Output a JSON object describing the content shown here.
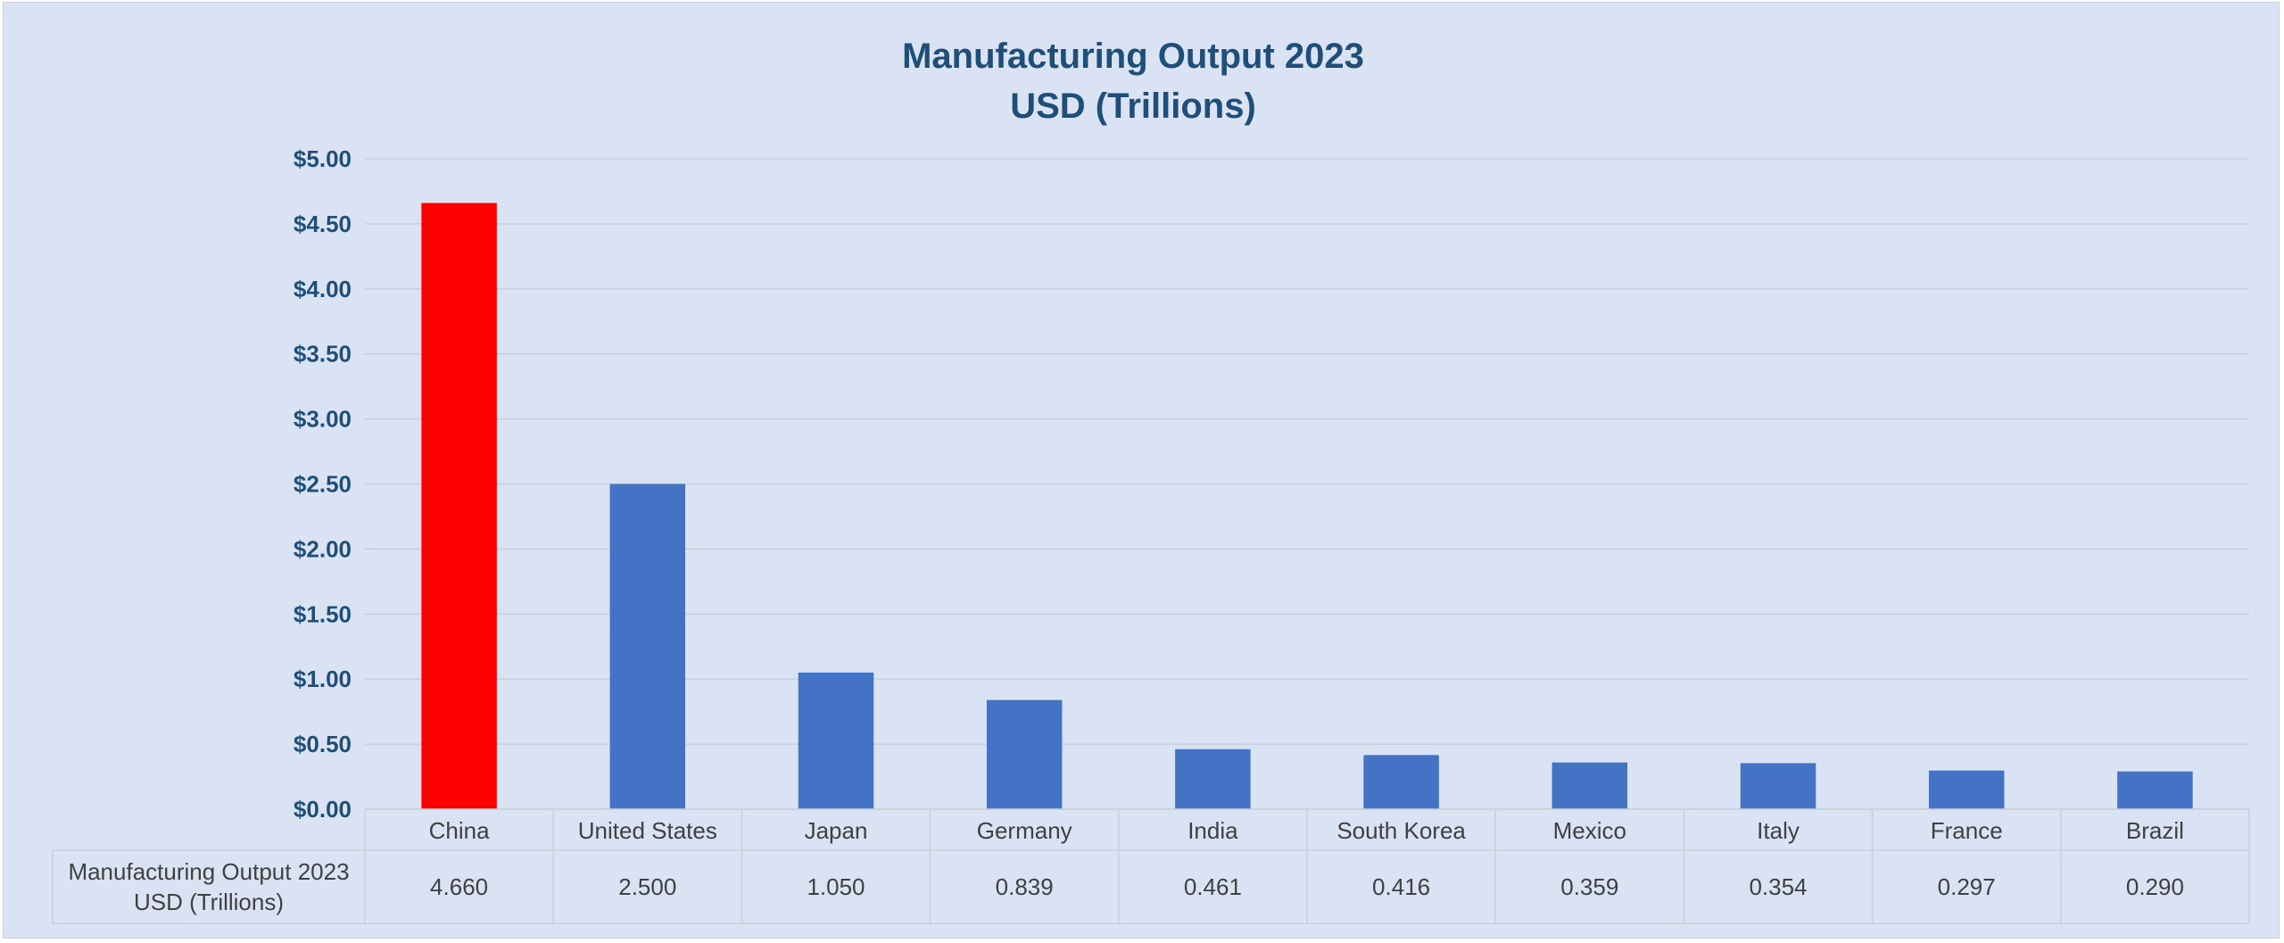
{
  "chart_data": {
    "type": "bar",
    "title": "Manufacturing Output 2023",
    "subtitle": "USD (Trillions)",
    "categories": [
      "China",
      "United States",
      "Japan",
      "Germany",
      "India",
      "South Korea",
      "Mexico",
      "Italy",
      "France",
      "Brazil"
    ],
    "series": [
      {
        "name": "Manufacturing Output 2023 USD (Trillions)",
        "name_lines": [
          "Manufacturing Output 2023",
          "USD (Trillions)"
        ],
        "values": [
          4.66,
          2.5,
          1.05,
          0.839,
          0.461,
          0.416,
          0.359,
          0.354,
          0.297,
          0.29
        ],
        "value_labels": [
          "4.660",
          "2.500",
          "1.050",
          "0.839",
          "0.461",
          "0.416",
          "0.359",
          "0.354",
          "0.297",
          "0.290"
        ]
      }
    ],
    "ylim": [
      0,
      5
    ],
    "yticks": [
      0,
      0.5,
      1,
      1.5,
      2,
      2.5,
      3,
      3.5,
      4,
      4.5,
      5
    ],
    "ytick_labels": [
      "$0.00",
      "$0.50",
      "$1.00",
      "$1.50",
      "$2.00",
      "$2.50",
      "$3.00",
      "$3.50",
      "$4.00",
      "$4.50",
      "$5.00"
    ],
    "xlabel": "",
    "ylabel": "",
    "grid": true,
    "legend": "data-table",
    "colors": {
      "highlight": "#ff0000",
      "bar": "#4472c4",
      "background": "#dae3f3",
      "title": "#1f4e79",
      "grid": "#c9cfd9"
    }
  }
}
